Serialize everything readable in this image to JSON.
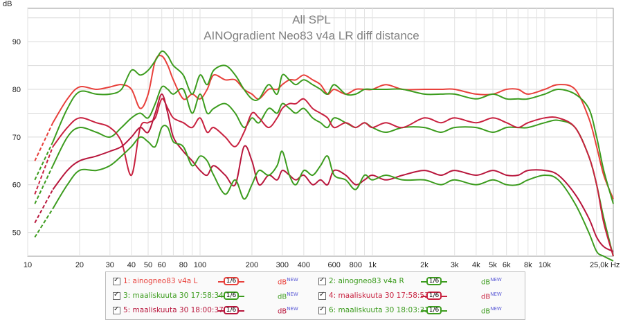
{
  "chart_data": {
    "type": "line",
    "title": "All SPL",
    "subtitle": "AINOgradient Neo83 v4a LR diff distance",
    "ylabel": "dB",
    "xlabel_unit": "Hz",
    "x_scale": "log",
    "xlim": [
      10,
      25000
    ],
    "ylim": [
      45,
      97
    ],
    "yticks": [
      50,
      60,
      70,
      80,
      90
    ],
    "xticks": [
      10,
      20,
      30,
      40,
      50,
      60,
      80,
      100,
      200,
      300,
      400,
      600,
      800,
      1000,
      2000,
      3000,
      4000,
      5000,
      6000,
      8000,
      10000,
      25000
    ],
    "xtick_labels": [
      "10",
      "20",
      "30",
      "40",
      "50",
      "60",
      "80",
      "100",
      "200",
      "300",
      "400",
      "600",
      "800",
      "1k",
      "2k",
      "3k",
      "4k",
      "5k",
      "6k",
      "8k",
      "10k",
      "25,0k Hz"
    ],
    "grid": true,
    "series": [
      {
        "name": "1: ainogneo83 v4a L",
        "color": "#e8403b",
        "x": [
          11,
          14,
          17,
          20,
          25,
          30,
          35,
          40,
          45,
          50,
          55,
          60,
          65,
          70,
          80,
          90,
          100,
          110,
          120,
          140,
          160,
          180,
          200,
          220,
          250,
          280,
          300,
          330,
          360,
          400,
          450,
          500,
          550,
          600,
          700,
          800,
          900,
          1000,
          1200,
          1500,
          2000,
          2500,
          3000,
          4000,
          5000,
          6000,
          7000,
          8000,
          10000,
          12000,
          15000,
          18000,
          20000,
          22000,
          25000
        ],
        "y": [
          65,
          73,
          78,
          80.5,
          80,
          80.5,
          81,
          80,
          76,
          79,
          86,
          87,
          85,
          82,
          78,
          79,
          78,
          80,
          83,
          82,
          82,
          80,
          79,
          78,
          80,
          80,
          81,
          82,
          82,
          83,
          82,
          81,
          79,
          80,
          79,
          80,
          80,
          80,
          81,
          80,
          80,
          80,
          80,
          79,
          79,
          80,
          80,
          79,
          80,
          81,
          80,
          74,
          68,
          62,
          57
        ]
      },
      {
        "name": "2: ainogneo83 v4a R",
        "color": "#3c9c1e",
        "x": [
          11,
          14,
          17,
          20,
          25,
          30,
          35,
          40,
          45,
          50,
          55,
          60,
          65,
          70,
          80,
          90,
          100,
          110,
          120,
          140,
          160,
          180,
          200,
          220,
          250,
          280,
          300,
          330,
          360,
          400,
          450,
          500,
          550,
          600,
          700,
          800,
          900,
          1000,
          1200,
          1500,
          2000,
          2500,
          3000,
          4000,
          5000,
          6000,
          7000,
          8000,
          10000,
          12000,
          15000,
          18000,
          20000,
          22000,
          25000
        ],
        "y": [
          61,
          69,
          76,
          79.5,
          79,
          79,
          80,
          84,
          83,
          84,
          86,
          88,
          87,
          85,
          83,
          79,
          83,
          81,
          84,
          85,
          83,
          80,
          78,
          78,
          81,
          79,
          83,
          82,
          81,
          82,
          81,
          80,
          79,
          81,
          79,
          79,
          80,
          80,
          80,
          80,
          79,
          79,
          79,
          78,
          79,
          78,
          78,
          78,
          79,
          80,
          79,
          76,
          70,
          63,
          56
        ]
      },
      {
        "name": "3: maaliskuuta 30 17:58:34",
        "color": "#3c9c1e",
        "x": [
          11,
          14,
          17,
          20,
          25,
          30,
          35,
          40,
          45,
          50,
          55,
          60,
          65,
          70,
          80,
          90,
          100,
          110,
          120,
          140,
          160,
          180,
          200,
          220,
          250,
          280,
          300,
          330,
          360,
          400,
          450,
          500,
          550,
          600,
          700,
          800,
          900,
          1000,
          1200,
          1500,
          2000,
          2500,
          3000,
          4000,
          5000,
          6000,
          7000,
          8000,
          10000,
          12000,
          15000,
          18000,
          20000,
          22000,
          25000
        ],
        "y": [
          56,
          64,
          70,
          72,
          71,
          70,
          72,
          74,
          75,
          74,
          77,
          80.5,
          80,
          79,
          80,
          75,
          79,
          75,
          76,
          77,
          75,
          72,
          74,
          73,
          76,
          75,
          77,
          76,
          75,
          76,
          74,
          73,
          72,
          74,
          73,
          72,
          73,
          72,
          71,
          72,
          72,
          71,
          72,
          72,
          71,
          72,
          72,
          72,
          73,
          73.5,
          72,
          66,
          60,
          53,
          45
        ]
      },
      {
        "name": "4: maaliskuuta 30 17:58:53",
        "color": "#c8213f",
        "x": [
          11,
          14,
          17,
          20,
          25,
          30,
          35,
          40,
          45,
          50,
          55,
          60,
          65,
          70,
          80,
          90,
          100,
          110,
          120,
          140,
          160,
          180,
          200,
          220,
          250,
          280,
          300,
          330,
          360,
          400,
          450,
          500,
          550,
          600,
          700,
          800,
          900,
          1000,
          1200,
          1500,
          2000,
          2500,
          3000,
          4000,
          5000,
          6000,
          7000,
          8000,
          10000,
          12000,
          15000,
          18000,
          20000,
          22000,
          25000
        ],
        "y": [
          58,
          68,
          72,
          74,
          73,
          72,
          69,
          62,
          72,
          73,
          74,
          78,
          76,
          74,
          73,
          72,
          74,
          71,
          72,
          70,
          68,
          71,
          75,
          74,
          72,
          74,
          76,
          77,
          77,
          78,
          76,
          75,
          74,
          72,
          73,
          72,
          73,
          72,
          73,
          72,
          74,
          73,
          74,
          73,
          74,
          73,
          72,
          73,
          74,
          74,
          72,
          66,
          60,
          52,
          45
        ]
      },
      {
        "name": "5: maaliskuuta 30 18:00:37",
        "color": "#b8163c",
        "x": [
          11,
          14,
          17,
          20,
          25,
          30,
          35,
          40,
          45,
          50,
          55,
          60,
          65,
          70,
          80,
          90,
          100,
          110,
          120,
          140,
          160,
          180,
          200,
          220,
          250,
          280,
          300,
          330,
          360,
          400,
          450,
          500,
          550,
          600,
          700,
          800,
          900,
          1000,
          1200,
          1500,
          2000,
          2500,
          3000,
          4000,
          5000,
          6000,
          7000,
          8000,
          10000,
          12000,
          15000,
          18000,
          20000,
          22000,
          25000
        ],
        "y": [
          52,
          59,
          63,
          65,
          66,
          67,
          68,
          70,
          72,
          71,
          75,
          79,
          75,
          70,
          67,
          65,
          63,
          62,
          64,
          62,
          60,
          68,
          65,
          60,
          62,
          61,
          63,
          62,
          61,
          62,
          60,
          61,
          60,
          63,
          62,
          60,
          61,
          62,
          61,
          62,
          63,
          62,
          63,
          62,
          63,
          62,
          62,
          63,
          63,
          62,
          58,
          53,
          49,
          47,
          46
        ]
      },
      {
        "name": "6: maaliskuuta 30 18:03:31",
        "color": "#3c9c1e",
        "x": [
          11,
          14,
          17,
          20,
          25,
          30,
          35,
          40,
          45,
          50,
          55,
          60,
          65,
          70,
          80,
          90,
          100,
          110,
          120,
          140,
          160,
          180,
          200,
          220,
          250,
          280,
          300,
          330,
          360,
          400,
          450,
          500,
          550,
          600,
          700,
          800,
          900,
          1000,
          1200,
          1500,
          2000,
          2500,
          3000,
          4000,
          5000,
          6000,
          7000,
          8000,
          10000,
          12000,
          15000,
          18000,
          20000,
          22000,
          25000
        ],
        "y": [
          49,
          55,
          60,
          63,
          63,
          64,
          66,
          68,
          70,
          69,
          68,
          72,
          72,
          69,
          68,
          64,
          66,
          65,
          62,
          58,
          61,
          57,
          60,
          63,
          62,
          64,
          67,
          62,
          60,
          63,
          62,
          64,
          66,
          62,
          61,
          59,
          62,
          61,
          62,
          61,
          61,
          60,
          61,
          60,
          61,
          60,
          60,
          61,
          62,
          61,
          56,
          50,
          46,
          45,
          44
        ]
      }
    ]
  },
  "legend": {
    "items": [
      {
        "label": "1: ainogneo83 v4a L",
        "smoothing": "1/6",
        "db": "dB",
        "new": "NEW"
      },
      {
        "label": "2: ainogneo83 v4a R",
        "smoothing": "1/6",
        "db": "dB",
        "new": "NEW"
      },
      {
        "label": "3: maaliskuuta 30 17:58:34",
        "smoothing": "1/6",
        "db": "dB",
        "new": "NEW"
      },
      {
        "label": "4: maaliskuuta 30 17:58:53",
        "smoothing": "1/6",
        "db": "dB",
        "new": "NEW"
      },
      {
        "label": "5: maaliskuuta 30 18:00:37",
        "smoothing": "1/6",
        "db": "dB",
        "new": "NEW"
      },
      {
        "label": "6: maaliskuuta 30 18:03:31",
        "smoothing": "1/6",
        "db": "dB",
        "new": "NEW"
      }
    ]
  }
}
